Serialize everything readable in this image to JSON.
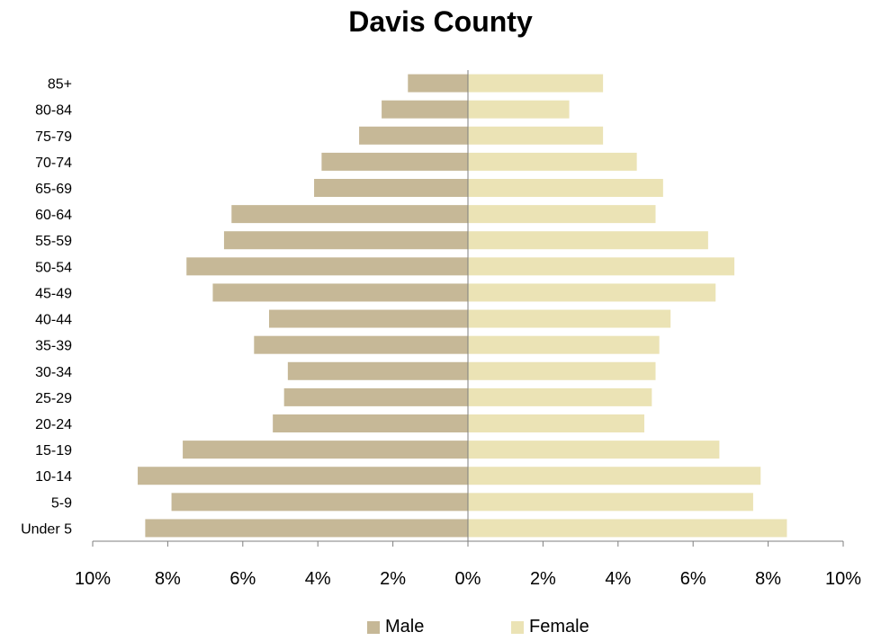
{
  "chart_data": {
    "type": "bar",
    "title": "Davis County",
    "categories": [
      "Under 5",
      "5-9",
      "10-14",
      "15-19",
      "20-24",
      "25-29",
      "30-34",
      "35-39",
      "40-44",
      "45-49",
      "50-54",
      "55-59",
      "60-64",
      "65-69",
      "70-74",
      "75-79",
      "80-84",
      "85+"
    ],
    "series": [
      {
        "name": "Male",
        "color": "#c6b897",
        "values": [
          8.6,
          7.9,
          8.8,
          7.6,
          5.2,
          4.9,
          4.8,
          5.7,
          5.3,
          6.8,
          7.5,
          6.5,
          6.3,
          4.1,
          3.9,
          2.9,
          2.3,
          1.6
        ]
      },
      {
        "name": "Female",
        "color": "#ebe3b5",
        "values": [
          8.5,
          7.6,
          7.8,
          6.7,
          4.7,
          4.9,
          5.0,
          5.1,
          5.4,
          6.6,
          7.1,
          6.4,
          5.0,
          5.2,
          4.5,
          3.6,
          2.7,
          3.6
        ]
      }
    ],
    "x_ticks": [
      "10%",
      "8%",
      "6%",
      "4%",
      "2%",
      "0%",
      "2%",
      "4%",
      "6%",
      "8%",
      "10%"
    ],
    "xlim": [
      -10,
      10
    ],
    "grid": false,
    "legend_position": "bottom"
  }
}
